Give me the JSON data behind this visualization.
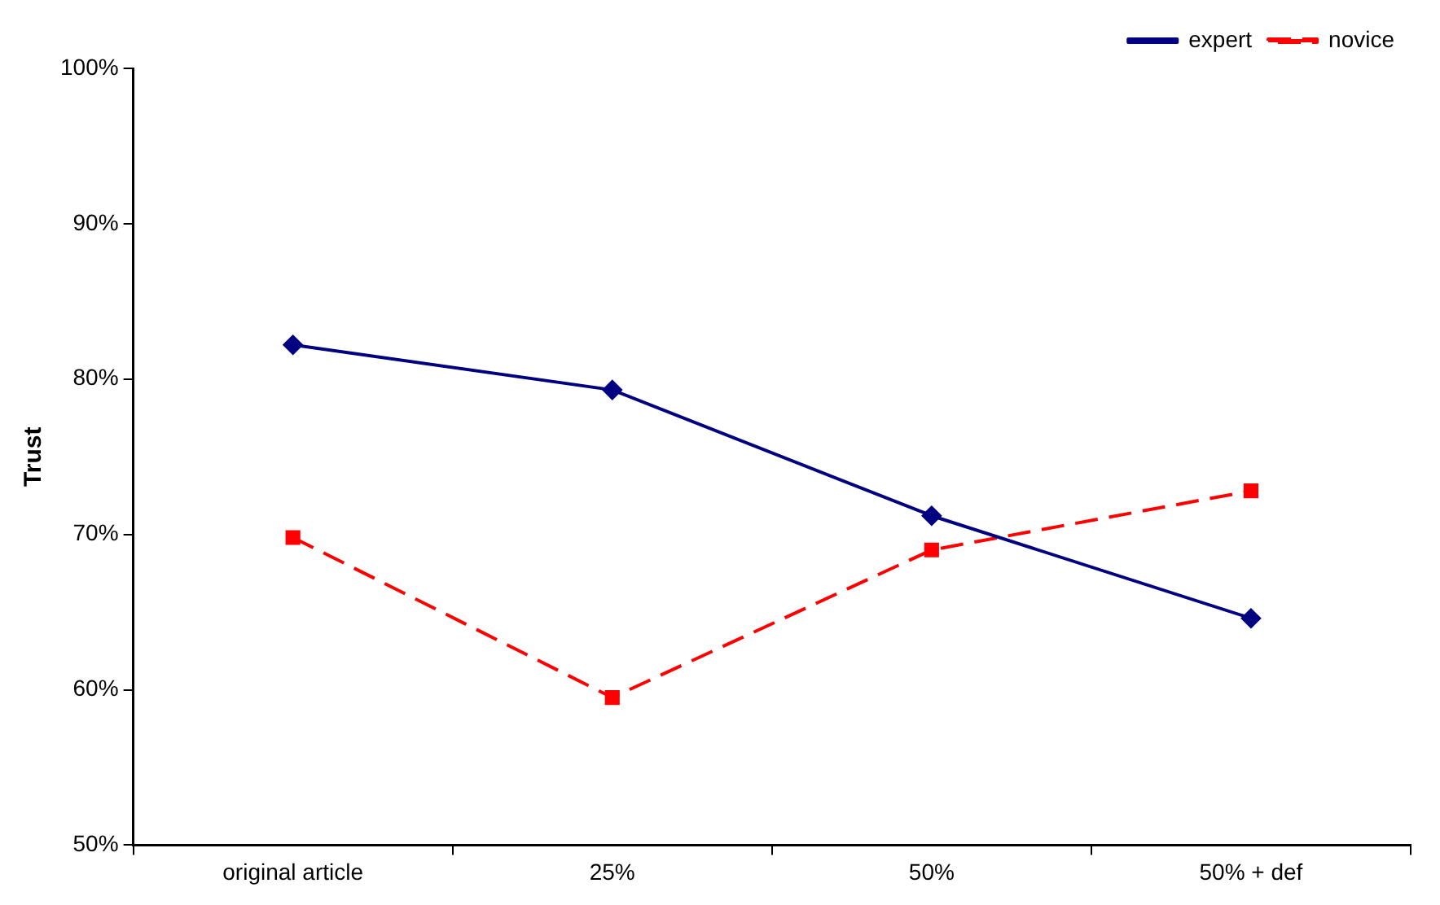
{
  "chart_data": {
    "type": "line",
    "ylabel": "Trust",
    "categories": [
      "original article",
      "25%",
      "50%",
      "50% + def"
    ],
    "series": [
      {
        "name": "expert",
        "color": "#000080",
        "values": [
          82.2,
          79.3,
          71.2,
          64.6
        ],
        "marker": "diamond",
        "line_style": "solid"
      },
      {
        "name": "novice",
        "color": "#ff0000",
        "values": [
          69.8,
          59.5,
          69.0,
          72.8
        ],
        "marker": "square",
        "line_style": "dashed"
      }
    ],
    "ylim": [
      50,
      100
    ],
    "yticks": [
      {
        "value": 50,
        "label": "50%"
      },
      {
        "value": 60,
        "label": "60%"
      },
      {
        "value": 70,
        "label": "70%"
      },
      {
        "value": 80,
        "label": "80%"
      },
      {
        "value": 90,
        "label": "90%"
      },
      {
        "value": 100,
        "label": "100%"
      }
    ],
    "grid": false,
    "legend": "top right"
  }
}
